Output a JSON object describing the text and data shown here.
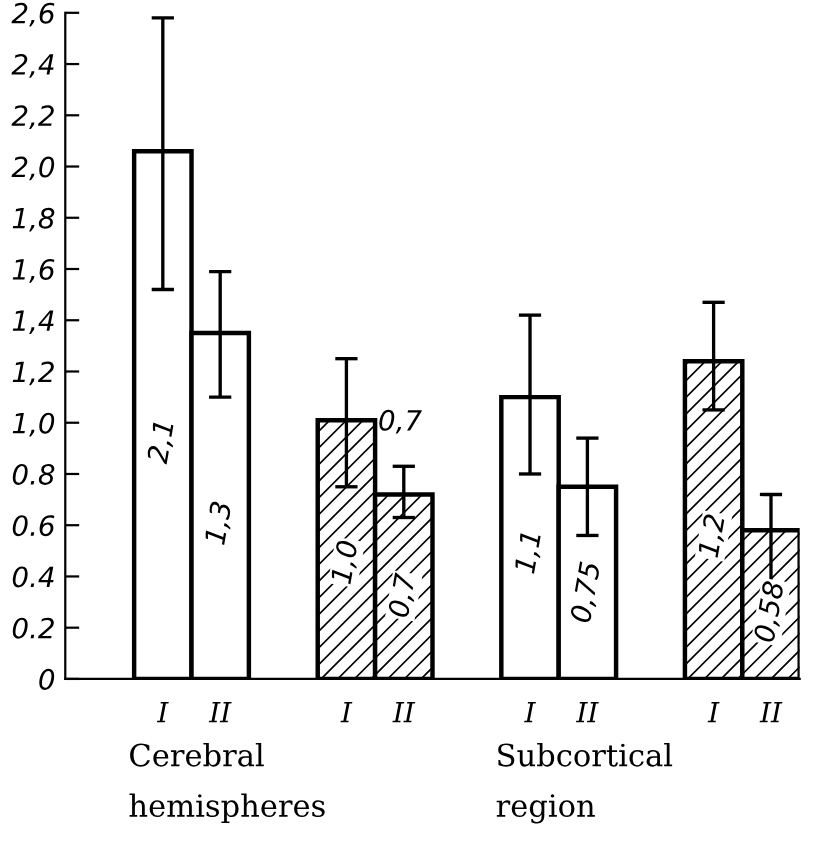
{
  "chart_data": {
    "type": "bar",
    "categories": [
      "I",
      "II",
      "I",
      "II",
      "I",
      "II",
      "I",
      "II"
    ],
    "series": [
      {
        "color": "#ffffff",
        "values": [
          2.06,
          1.35,
          null,
          null,
          1.1,
          0.75,
          null,
          null
        ],
        "errors": [
          [
            1.52,
            2.58
          ],
          [
            1.1,
            1.59
          ],
          null,
          null,
          [
            0.8,
            1.42
          ],
          [
            0.56,
            0.94
          ],
          null,
          null
        ],
        "value_labels": [
          "2,1",
          "1,3",
          null,
          null,
          "1,1",
          "0,75",
          null,
          null
        ]
      },
      {
        "color": "#000000",
        "values": [
          null,
          null,
          1.01,
          0.72,
          null,
          null,
          1.24,
          0.58
        ],
        "errors": [
          null,
          null,
          [
            0.75,
            1.25
          ],
          [
            0.63,
            0.83
          ],
          null,
          null,
          [
            1.05,
            1.47
          ],
          [
            0.35,
            0.72
          ]
        ],
        "value_labels": [
          null,
          null,
          "1,0",
          "0,7",
          null,
          null,
          "1,2",
          "0,58"
        ]
      }
    ],
    "ylim": [
      0,
      2.6
    ],
    "yticks": [
      0,
      {
        "value": 0.2,
        "label": "0.2"
      },
      {
        "value": 0.4,
        "label": "0.4"
      },
      {
        "value": 0.6,
        "label": "0.6"
      },
      {
        "value": 0.8,
        "label": "0.8"
      },
      {
        "value": 1.0,
        "label": "1,0"
      },
      {
        "value": 1.2,
        "label": "1,2"
      },
      {
        "value": 1.4,
        "label": "1,4"
      },
      {
        "value": 1.6,
        "label": "1,6"
      },
      {
        "value": 1.8,
        "label": "1,8"
      },
      {
        "value": 2.0,
        "label": "2,0"
      },
      {
        "value": 2.2,
        "label": "2,2"
      },
      {
        "value": 2.4,
        "label": "2,4"
      },
      {
        "value": 2.6,
        "label": "2,6"
      }
    ],
    "annotations": [
      "Cerebral\nhemispheres",
      "Subcortical\nregion",
      "0,7"
    ],
    "grid": false,
    "legend": false
  }
}
